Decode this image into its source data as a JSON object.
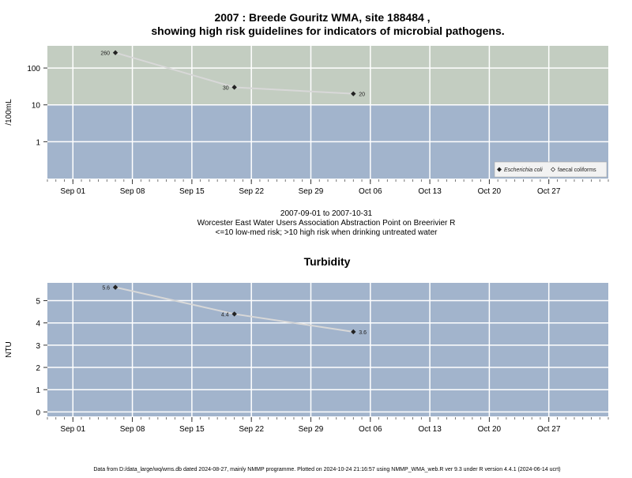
{
  "page": {
    "title_line1": "2007 : Breede Gouritz WMA, site 188484 ,",
    "title_line2": "showing high risk guidelines for indicators of microbial pathogens.",
    "caption_dates": "2007-09-01 to 2007-10-31",
    "caption_site": "Worcester East Water Users Association Abstraction Point on Breerivier R",
    "caption_risk": "<=10 low-med risk; >10 high risk when drinking untreated water",
    "footer": "Data from D:/data_large/wq/wms.db dated 2024-08-27, mainly NMMP programme. Plotted on 2024-10-24 21:16:57 using NMMP_WMA_web.R ver 9.3 under R version 4.4.1 (2024-06-14 ucrt)"
  },
  "colors": {
    "panel_low": "#a2b4cc",
    "panel_high": "#c3cdc1",
    "grid": "#ffffff",
    "series_line": "#d8d8d8",
    "point": "#222222"
  },
  "chart_data": [
    {
      "type": "line",
      "title": "",
      "ylabel": "/100mL",
      "y_scale": "log",
      "ylim": [
        0.1,
        400
      ],
      "threshold": 10,
      "threshold_note": "<=10 low-med risk; >10 high risk",
      "xlim": [
        "2007-08-29",
        "2007-11-03"
      ],
      "x_ticks": [
        "Sep 01",
        "Sep 08",
        "Sep 15",
        "Sep 22",
        "Sep 29",
        "Oct 06",
        "Oct 13",
        "Oct 20",
        "Oct 27"
      ],
      "x_tick_dates": [
        "2007-09-01",
        "2007-09-08",
        "2007-09-15",
        "2007-09-22",
        "2007-09-29",
        "2007-10-06",
        "2007-10-13",
        "2007-10-20",
        "2007-10-27"
      ],
      "y_ticks": [
        "1",
        "10",
        "100"
      ],
      "y_tick_values": [
        1,
        10,
        100
      ],
      "legend_position": "bottom-right",
      "legend": [
        {
          "label": "Escherichia coli",
          "marker": "filled-diamond",
          "italic": true
        },
        {
          "label": "faecal coliforms",
          "marker": "open-diamond",
          "italic": false
        }
      ],
      "series": [
        {
          "name": "Escherichia coli",
          "x": [
            "2007-09-06",
            "2007-09-20",
            "2007-10-04"
          ],
          "y": [
            260,
            30,
            20
          ],
          "labels": [
            "260",
            "30",
            "20"
          ]
        }
      ]
    },
    {
      "type": "line",
      "title": "Turbidity",
      "ylabel": "NTU",
      "y_scale": "linear",
      "ylim": [
        -0.2,
        5.8
      ],
      "xlim": [
        "2007-08-29",
        "2007-11-03"
      ],
      "x_ticks": [
        "Sep 01",
        "Sep 08",
        "Sep 15",
        "Sep 22",
        "Sep 29",
        "Oct 06",
        "Oct 13",
        "Oct 20",
        "Oct 27"
      ],
      "x_tick_dates": [
        "2007-09-01",
        "2007-09-08",
        "2007-09-15",
        "2007-09-22",
        "2007-09-29",
        "2007-10-06",
        "2007-10-13",
        "2007-10-20",
        "2007-10-27"
      ],
      "y_ticks": [
        "0",
        "1",
        "2",
        "3",
        "4",
        "5"
      ],
      "y_tick_values": [
        0,
        1,
        2,
        3,
        4,
        5
      ],
      "series": [
        {
          "name": "Turbidity",
          "x": [
            "2007-09-06",
            "2007-09-20",
            "2007-10-04"
          ],
          "y": [
            5.6,
            4.4,
            3.6
          ],
          "labels": [
            "5.6",
            "4.4",
            "3.6"
          ]
        }
      ]
    }
  ]
}
